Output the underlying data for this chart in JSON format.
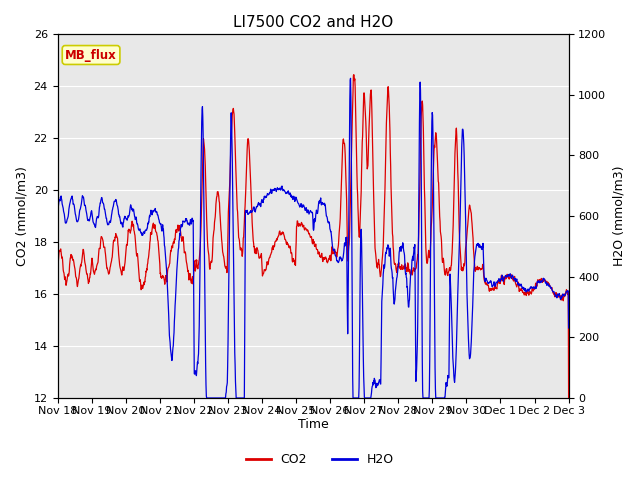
{
  "title": "LI7500 CO2 and H2O",
  "xlabel": "Time",
  "ylabel_left": "CO2 (mmol/m3)",
  "ylabel_right": "H2O (mmol/m3)",
  "ylim_left": [
    12,
    26
  ],
  "ylim_right": [
    0,
    1200
  ],
  "yticks_left": [
    12,
    14,
    16,
    18,
    20,
    22,
    24,
    26
  ],
  "yticks_right": [
    0,
    200,
    400,
    600,
    800,
    1000,
    1200
  ],
  "xtick_labels": [
    "Nov 18",
    "Nov 19",
    "Nov 20",
    "Nov 21",
    "Nov 22",
    "Nov 23",
    "Nov 24",
    "Nov 25",
    "Nov 26",
    "Nov 27",
    "Nov 28",
    "Nov 29",
    "Nov 30",
    "Dec 1",
    "Dec 2",
    "Dec 3"
  ],
  "co2_color": "#DD0000",
  "h2o_color": "#0000DD",
  "fig_bg_color": "#FFFFFF",
  "plot_bg_color": "#E8E8E8",
  "grid_color": "#FFFFFF",
  "annotation_text": "MB_flux",
  "annotation_bg": "#FFFFCC",
  "annotation_fg": "#CC0000",
  "annotation_edge": "#CCCC00",
  "legend_co2": "CO2",
  "legend_h2o": "H2O",
  "title_fontsize": 11,
  "axis_fontsize": 9,
  "tick_fontsize": 8,
  "linewidth": 0.9
}
